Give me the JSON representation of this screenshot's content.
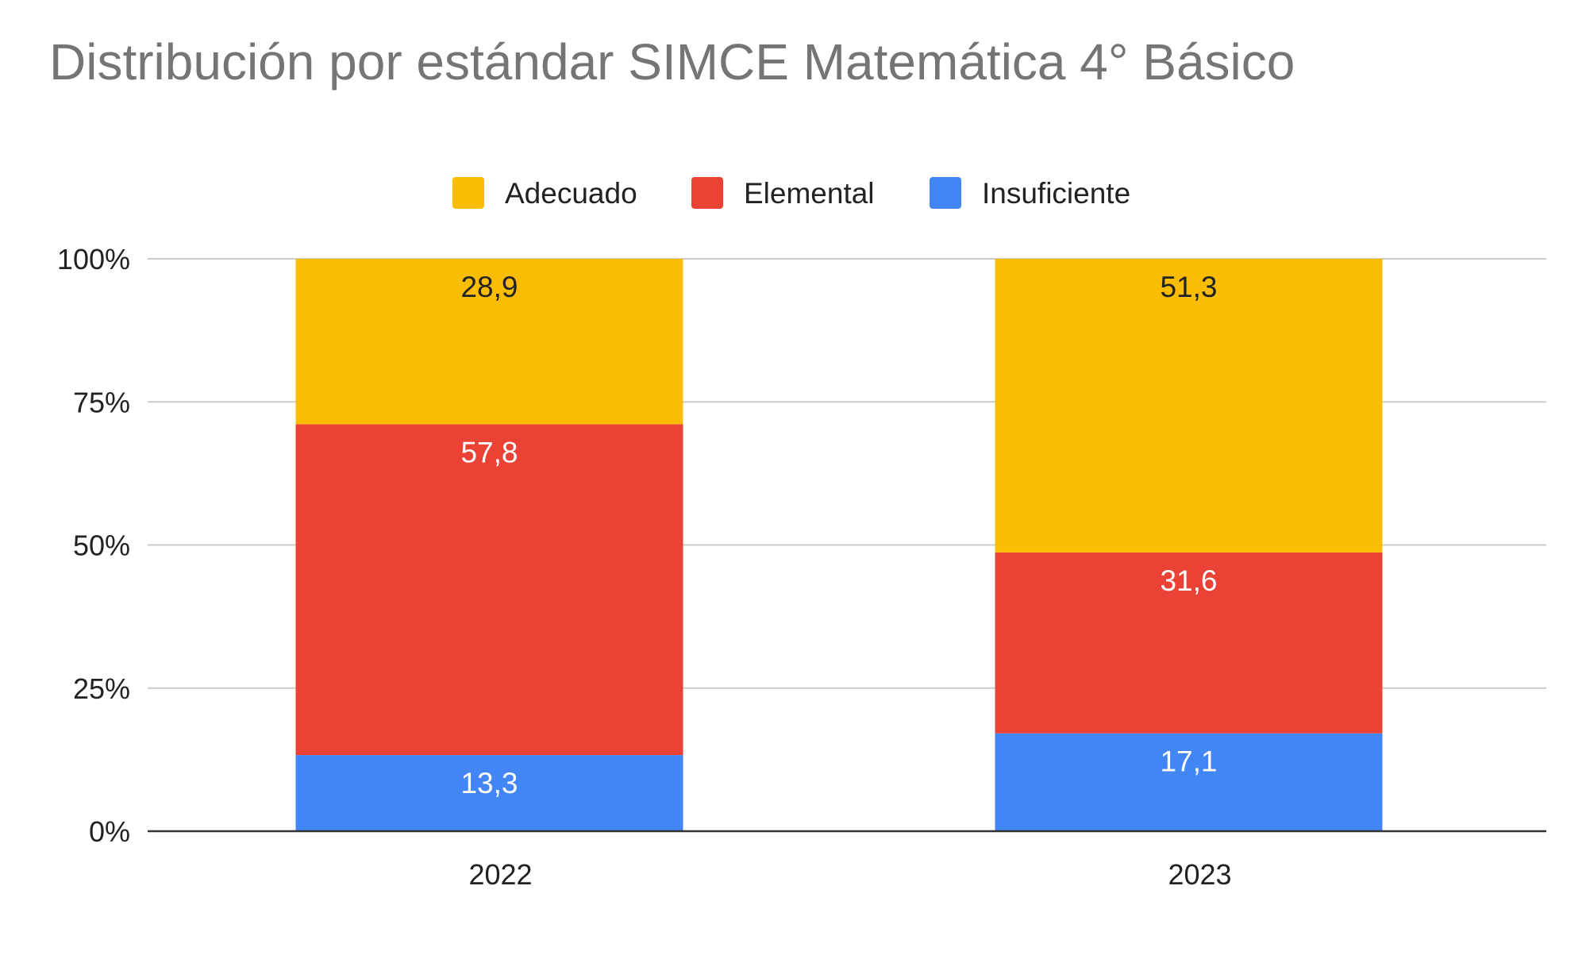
{
  "chart_data": {
    "type": "bar",
    "stacked": true,
    "percent_stacked": true,
    "title": "Distribución por estándar SIMCE Matemática 4° Básico",
    "xlabel": "",
    "ylabel": "",
    "categories": [
      "2022",
      "2023"
    ],
    "series": [
      {
        "name": "Insuficiente",
        "values": [
          13.3,
          17.1
        ],
        "labels": [
          "13,3",
          "17,1"
        ],
        "color": "#4285f4",
        "label_color": "#ffffff"
      },
      {
        "name": "Elemental",
        "values": [
          57.8,
          31.6
        ],
        "labels": [
          "57,8",
          "31,6"
        ],
        "color": "#ea4335",
        "label_color": "#ffffff"
      },
      {
        "name": "Adecuado",
        "values": [
          28.9,
          51.3
        ],
        "labels": [
          "28,9",
          "51,3"
        ],
        "color": "#fbbc04",
        "label_color": "#222222"
      }
    ],
    "legend": {
      "position": "top",
      "order": [
        "Adecuado",
        "Elemental",
        "Insuficiente"
      ]
    },
    "y_ticks": [
      {
        "value": 0,
        "label": "0%"
      },
      {
        "value": 25,
        "label": "25%"
      },
      {
        "value": 50,
        "label": "50%"
      },
      {
        "value": 75,
        "label": "75%"
      },
      {
        "value": 100,
        "label": "100%"
      }
    ],
    "ylim": [
      0,
      100
    ],
    "grid": true
  }
}
